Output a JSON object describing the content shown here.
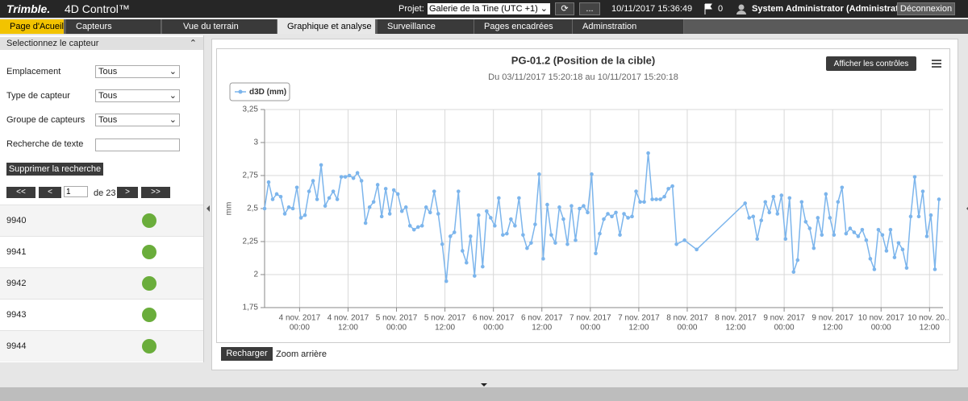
{
  "header": {
    "logo": "Trimble.",
    "product": "4D Control™",
    "project_label": "Projet:",
    "project": "Galerie de la Tine (UTC +1)",
    "more": "...",
    "datetime": "10/11/2017 15:36:49",
    "flags": "0",
    "user": "System Administrator (Administrateur)",
    "logout": "Déconnexion"
  },
  "tabs": [
    "Page d'Acueil",
    "Capteurs",
    "Vue du terrain",
    "Graphique et analyse",
    "Surveillance",
    "Pages encadrées",
    "Adminstration"
  ],
  "sidebar": {
    "title": "Selectionnez le capteur",
    "filters": [
      {
        "label": "Emplacement",
        "value": "Tous"
      },
      {
        "label": "Type de capteur",
        "value": "Tous"
      },
      {
        "label": "Groupe de capteurs",
        "value": "Tous"
      }
    ],
    "search_label": "Recherche de texte",
    "clear": "Supprimer la recherche",
    "pager": {
      "first": "<<",
      "prev": "<",
      "page": "1",
      "of": "de 23",
      "next": ">",
      "last": ">>"
    },
    "sensors": [
      "9940",
      "9941",
      "9942",
      "9943",
      "9944"
    ]
  },
  "toolbar": {
    "show_controls": "Afficher les contrôles",
    "reload": "Recharger",
    "zoom_out": "Zoom arrière"
  },
  "chart_data": {
    "type": "line",
    "title": "PG-01.2 (Position de la cible)",
    "subtitle": "Du 03/11/2017 15:20:18 au 10/11/2017 15:20:18",
    "ylabel": "mm",
    "legend": "top-left",
    "grid": true,
    "xlim": [
      "2017-11-03T15:20",
      "2017-11-10T15:20"
    ],
    "xticks": [
      {
        "value": "2017-11-04T00:00",
        "label": [
          "4 nov. 2017",
          "00:00"
        ]
      },
      {
        "value": "2017-11-04T12:00",
        "label": [
          "4 nov. 2017",
          "12:00"
        ]
      },
      {
        "value": "2017-11-05T00:00",
        "label": [
          "5 nov. 2017",
          "00:00"
        ]
      },
      {
        "value": "2017-11-05T12:00",
        "label": [
          "5 nov. 2017",
          "12:00"
        ]
      },
      {
        "value": "2017-11-06T00:00",
        "label": [
          "6 nov. 2017",
          "00:00"
        ]
      },
      {
        "value": "2017-11-06T12:00",
        "label": [
          "6 nov. 2017",
          "12:00"
        ]
      },
      {
        "value": "2017-11-07T00:00",
        "label": [
          "7 nov. 2017",
          "00:00"
        ]
      },
      {
        "value": "2017-11-07T12:00",
        "label": [
          "7 nov. 2017",
          "12:00"
        ]
      },
      {
        "value": "2017-11-08T00:00",
        "label": [
          "8 nov. 2017",
          "00:00"
        ]
      },
      {
        "value": "2017-11-08T12:00",
        "label": [
          "8 nov. 2017",
          "12:00"
        ]
      },
      {
        "value": "2017-11-09T00:00",
        "label": [
          "9 nov. 2017",
          "00:00"
        ]
      },
      {
        "value": "2017-11-09T12:00",
        "label": [
          "9 nov. 2017",
          "12:00"
        ]
      },
      {
        "value": "2017-11-10T00:00",
        "label": [
          "10 nov. 2017",
          "00:00"
        ]
      },
      {
        "value": "2017-11-10T12:00",
        "label": [
          "10 nov. 20...",
          "12:00"
        ]
      }
    ],
    "ylim": [
      1.75,
      3.25
    ],
    "yticks": [
      {
        "value": 1.75,
        "label": "1,75"
      },
      2,
      {
        "value": 2.25,
        "label": "2,25"
      },
      {
        "value": 2.5,
        "label": "2,5"
      },
      {
        "value": 2.75,
        "label": "2,75"
      },
      3,
      {
        "value": 3.25,
        "label": "3,25"
      }
    ],
    "x": [
      "2017-11-03T15:20",
      "2017-11-03T16:20",
      "2017-11-03T17:20",
      "2017-11-03T18:20",
      "2017-11-03T19:20",
      "2017-11-03T20:20",
      "2017-11-03T21:20",
      "2017-11-03T22:20",
      "2017-11-03T23:20",
      "2017-11-04T00:20",
      "2017-11-04T01:20",
      "2017-11-04T02:20",
      "2017-11-04T03:20",
      "2017-11-04T04:20",
      "2017-11-04T05:20",
      "2017-11-04T06:20",
      "2017-11-04T07:20",
      "2017-11-04T08:20",
      "2017-11-04T09:20",
      "2017-11-04T10:20",
      "2017-11-04T11:20",
      "2017-11-04T12:20",
      "2017-11-04T13:20",
      "2017-11-04T14:20",
      "2017-11-04T15:20",
      "2017-11-04T16:20",
      "2017-11-04T17:20",
      "2017-11-04T18:20",
      "2017-11-04T19:20",
      "2017-11-04T20:20",
      "2017-11-04T21:20",
      "2017-11-04T22:20",
      "2017-11-04T23:20",
      "2017-11-05T00:20",
      "2017-11-05T01:20",
      "2017-11-05T02:20",
      "2017-11-05T03:20",
      "2017-11-05T04:20",
      "2017-11-05T05:20",
      "2017-11-05T06:20",
      "2017-11-05T07:20",
      "2017-11-05T08:20",
      "2017-11-05T09:20",
      "2017-11-05T10:20",
      "2017-11-05T11:20",
      "2017-11-05T12:20",
      "2017-11-05T13:20",
      "2017-11-05T14:20",
      "2017-11-05T15:20",
      "2017-11-05T16:20",
      "2017-11-05T17:20",
      "2017-11-05T18:20",
      "2017-11-05T19:20",
      "2017-11-05T20:20",
      "2017-11-05T21:20",
      "2017-11-05T22:20",
      "2017-11-05T23:20",
      "2017-11-06T00:20",
      "2017-11-06T01:20",
      "2017-11-06T02:20",
      "2017-11-06T03:20",
      "2017-11-06T04:20",
      "2017-11-06T05:20",
      "2017-11-06T06:20",
      "2017-11-06T07:20",
      "2017-11-06T08:20",
      "2017-11-06T09:20",
      "2017-11-06T10:20",
      "2017-11-06T11:20",
      "2017-11-06T12:20",
      "2017-11-06T13:20",
      "2017-11-06T14:20",
      "2017-11-06T15:20",
      "2017-11-06T16:20",
      "2017-11-06T17:20",
      "2017-11-06T18:20",
      "2017-11-06T19:20",
      "2017-11-06T20:20",
      "2017-11-06T21:20",
      "2017-11-06T22:20",
      "2017-11-06T23:20",
      "2017-11-07T00:20",
      "2017-11-07T01:20",
      "2017-11-07T02:20",
      "2017-11-07T03:20",
      "2017-11-07T04:20",
      "2017-11-07T05:20",
      "2017-11-07T06:20",
      "2017-11-07T07:20",
      "2017-11-07T08:20",
      "2017-11-07T09:20",
      "2017-11-07T10:20",
      "2017-11-07T11:20",
      "2017-11-07T12:20",
      "2017-11-07T13:20",
      "2017-11-07T14:20",
      "2017-11-07T15:20",
      "2017-11-07T16:20",
      "2017-11-07T17:20",
      "2017-11-07T18:20",
      "2017-11-07T19:20",
      "2017-11-07T20:20",
      "2017-11-07T21:20",
      "2017-11-07T23:20",
      "2017-11-08T02:20",
      "2017-11-08T14:20",
      "2017-11-08T15:20",
      "2017-11-08T16:20",
      "2017-11-08T17:20",
      "2017-11-08T18:20",
      "2017-11-08T19:20",
      "2017-11-08T20:20",
      "2017-11-08T21:20",
      "2017-11-08T22:20",
      "2017-11-08T23:20",
      "2017-11-09T00:20",
      "2017-11-09T01:20",
      "2017-11-09T02:20",
      "2017-11-09T03:20",
      "2017-11-09T04:20",
      "2017-11-09T05:20",
      "2017-11-09T06:20",
      "2017-11-09T07:20",
      "2017-11-09T08:20",
      "2017-11-09T09:20",
      "2017-11-09T10:20",
      "2017-11-09T11:20",
      "2017-11-09T12:20",
      "2017-11-09T13:20",
      "2017-11-09T14:20",
      "2017-11-09T15:20",
      "2017-11-09T16:20",
      "2017-11-09T17:20",
      "2017-11-09T18:20",
      "2017-11-09T19:20",
      "2017-11-09T20:20",
      "2017-11-09T21:20",
      "2017-11-09T22:20",
      "2017-11-09T23:20",
      "2017-11-10T00:20",
      "2017-11-10T01:20",
      "2017-11-10T02:20",
      "2017-11-10T03:20",
      "2017-11-10T04:20",
      "2017-11-10T05:20",
      "2017-11-10T06:20",
      "2017-11-10T07:20",
      "2017-11-10T08:20",
      "2017-11-10T09:20",
      "2017-11-10T10:20",
      "2017-11-10T11:20",
      "2017-11-10T12:20",
      "2017-11-10T13:20",
      "2017-11-10T14:20"
    ],
    "series": [
      {
        "name": "d3D (mm)",
        "color": "#7cb5ec",
        "values": [
          2.5,
          2.7,
          2.57,
          2.61,
          2.59,
          2.46,
          2.51,
          2.5,
          2.66,
          2.43,
          2.45,
          2.63,
          2.71,
          2.57,
          2.83,
          2.52,
          2.58,
          2.63,
          2.57,
          2.74,
          2.74,
          2.75,
          2.73,
          2.77,
          2.71,
          2.39,
          2.51,
          2.55,
          2.68,
          2.44,
          2.65,
          2.46,
          2.64,
          2.61,
          2.48,
          2.51,
          2.37,
          2.34,
          2.36,
          2.37,
          2.51,
          2.47,
          2.63,
          2.46,
          2.23,
          1.95,
          2.29,
          2.32,
          2.63,
          2.18,
          2.09,
          2.29,
          1.99,
          2.45,
          2.06,
          2.48,
          2.43,
          2.37,
          2.58,
          2.3,
          2.31,
          2.42,
          2.37,
          2.58,
          2.3,
          2.2,
          2.24,
          2.38,
          2.76,
          2.12,
          2.53,
          2.3,
          2.24,
          2.51,
          2.42,
          2.23,
          2.52,
          2.26,
          2.5,
          2.52,
          2.47,
          2.76,
          2.16,
          2.31,
          2.42,
          2.46,
          2.44,
          2.47,
          2.3,
          2.46,
          2.43,
          2.44,
          2.63,
          2.55,
          2.55,
          2.92,
          2.57,
          2.57,
          2.57,
          2.59,
          2.65,
          2.67,
          2.23,
          2.26,
          2.19,
          2.54,
          2.43,
          2.44,
          2.27,
          2.41,
          2.55,
          2.47,
          2.59,
          2.46,
          2.6,
          2.27,
          2.58,
          2.02,
          2.11,
          2.55,
          2.4,
          2.35,
          2.2,
          2.43,
          2.3,
          2.61,
          2.43,
          2.3,
          2.55,
          2.66,
          2.31,
          2.35,
          2.32,
          2.29,
          2.34,
          2.26,
          2.12,
          2.04,
          2.34,
          2.3,
          2.18,
          2.34,
          2.13,
          2.24,
          2.19,
          2.05,
          2.44,
          2.74,
          2.44,
          2.63,
          2.29,
          2.45,
          2.04,
          2.57
        ]
      }
    ]
  }
}
